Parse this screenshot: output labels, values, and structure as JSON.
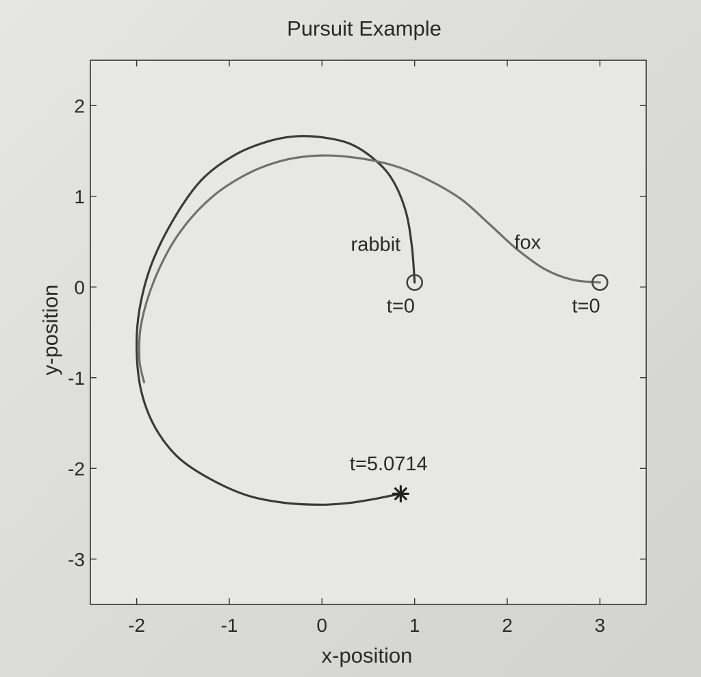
{
  "chart_data": {
    "type": "line",
    "title": "Pursuit Example",
    "xlabel": "x-position",
    "ylabel": "y-position",
    "xlim": [
      -2.5,
      3.5
    ],
    "ylim": [
      -3.5,
      2.5
    ],
    "xticks": [
      -2,
      -1,
      0,
      1,
      2,
      3
    ],
    "yticks": [
      2,
      1,
      0,
      -1,
      -2,
      -3
    ],
    "grid": false,
    "series": [
      {
        "name": "rabbit",
        "color": "#3a3a3a",
        "x": [
          1.0,
          0.97,
          0.9,
          0.75,
          0.55,
          0.3,
          0.0,
          -0.3,
          -0.6,
          -0.95,
          -1.3,
          -1.6,
          -1.84,
          -1.97,
          -2.0,
          -1.95,
          -1.8,
          -1.55,
          -1.2,
          -0.8,
          -0.4,
          0.0,
          0.3,
          0.55,
          0.75,
          0.85
        ],
        "y": [
          0.05,
          0.45,
          0.85,
          1.2,
          1.42,
          1.58,
          1.65,
          1.66,
          1.6,
          1.45,
          1.18,
          0.75,
          0.25,
          -0.25,
          -0.7,
          -1.15,
          -1.55,
          -1.88,
          -2.12,
          -2.3,
          -2.38,
          -2.4,
          -2.38,
          -2.34,
          -2.3,
          -2.28
        ]
      },
      {
        "name": "fox",
        "color": "#707070",
        "x": [
          3.0,
          2.7,
          2.4,
          2.1,
          1.8,
          1.5,
          1.15,
          0.8,
          0.4,
          0.0,
          -0.4,
          -0.8,
          -1.2,
          -1.55,
          -1.8,
          -1.95,
          -1.97,
          -1.92
        ],
        "y": [
          0.05,
          0.08,
          0.2,
          0.42,
          0.7,
          0.97,
          1.18,
          1.33,
          1.42,
          1.45,
          1.4,
          1.25,
          0.98,
          0.58,
          0.1,
          -0.4,
          -0.8,
          -1.05
        ]
      }
    ],
    "markers": [
      {
        "name": "rabbit-start",
        "symbol": "circle",
        "x": 1.0,
        "y": 0.05
      },
      {
        "name": "fox-start",
        "symbol": "circle",
        "x": 3.0,
        "y": 0.05
      },
      {
        "name": "capture-point",
        "symbol": "asterisk",
        "x": 0.85,
        "y": -2.28
      }
    ],
    "annotations": [
      {
        "name": "label-rabbit",
        "text": "rabbit",
        "x": 0.58,
        "y": 0.4
      },
      {
        "name": "label-fox",
        "text": "fox",
        "x": 2.22,
        "y": 0.42
      },
      {
        "name": "label-rabbit-t0",
        "text": "t=0",
        "x": 0.85,
        "y": -0.28
      },
      {
        "name": "label-fox-t0",
        "text": "t=0",
        "x": 2.85,
        "y": -0.28
      },
      {
        "name": "label-capture-time",
        "text": "t=5.0714",
        "x": 0.72,
        "y": -2.02
      }
    ]
  }
}
